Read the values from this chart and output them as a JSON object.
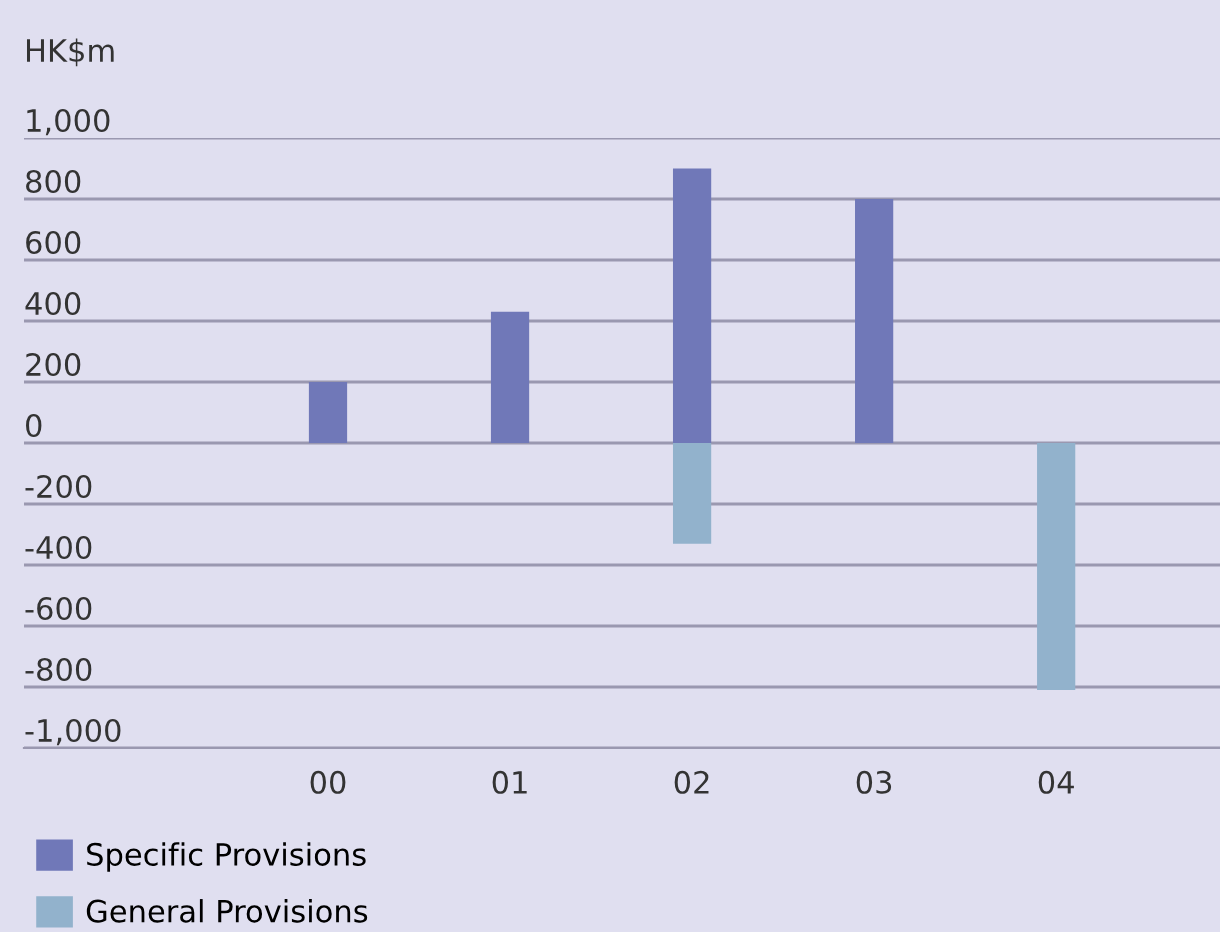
{
  "chart_data": {
    "type": "bar",
    "ylabel": "HK$m",
    "categories": [
      "00",
      "01",
      "02",
      "03",
      "04"
    ],
    "series": [
      {
        "name": "Specific Provisions",
        "color": "#7078b8",
        "values": [
          200,
          430,
          900,
          800,
          0
        ]
      },
      {
        "name": "General Provisions",
        "color": "#92b2cc",
        "values": [
          null,
          0,
          -330,
          null,
          -810
        ]
      }
    ],
    "ylim": [
      -1000,
      1000
    ],
    "yticks": [
      {
        "value": 1000,
        "label": "1,000"
      },
      800,
      600,
      400,
      200,
      0,
      -200,
      -400,
      -600,
      -800,
      {
        "value": -1000,
        "label": "-1,000"
      }
    ],
    "grid": "y",
    "legend": "bottom left"
  }
}
